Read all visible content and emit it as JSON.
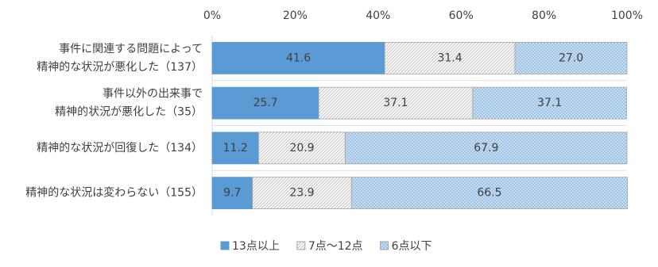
{
  "chart_data": {
    "type": "stacked_barh",
    "categories": [
      [
        "事件に関連する問題によって",
        "精神的な状況が悪化した（137）"
      ],
      [
        "事件以外の出来事で",
        "精神的状況が悪化した（35）"
      ],
      [
        "精神的な状況が回復した（134）"
      ],
      [
        "精神的な状況は変わらない（155）"
      ]
    ],
    "series": [
      {
        "name": "13点以上",
        "color": "#5b9bd5",
        "pattern": "solid",
        "values": [
          41.6,
          25.7,
          11.2,
          9.7
        ],
        "value_labels": [
          "41.6",
          "25.7",
          "11.2",
          "9.7"
        ]
      },
      {
        "name": "7点～12点",
        "color": "#d9d9d9",
        "pattern": "diagonal",
        "values": [
          31.4,
          37.1,
          20.9,
          23.9
        ],
        "value_labels": [
          "31.4",
          "37.1",
          "20.9",
          "23.9"
        ]
      },
      {
        "name": "6点以下",
        "color": "#9dc3e6",
        "pattern": "dots",
        "values": [
          27.0,
          37.1,
          67.9,
          66.5
        ],
        "value_labels": [
          "27.0",
          "37.1",
          "67.9",
          "66.5"
        ]
      }
    ],
    "xlim": [
      0,
      100
    ],
    "xticks": [
      {
        "value": 0,
        "label": "0%"
      },
      {
        "value": 20,
        "label": "20%"
      },
      {
        "value": 40,
        "label": "40%"
      },
      {
        "value": 60,
        "label": "60%"
      },
      {
        "value": 80,
        "label": "80%"
      },
      {
        "value": 100,
        "label": "100%"
      }
    ],
    "legend": "bottom"
  }
}
